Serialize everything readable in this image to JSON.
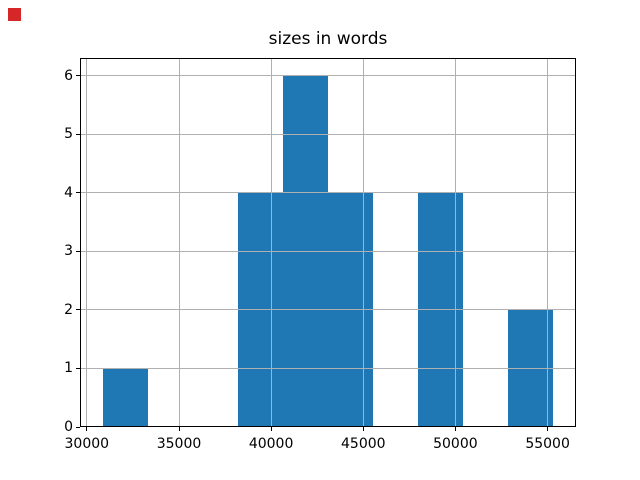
{
  "window": {
    "background_color": "#ffffff",
    "marker_color": "#d62728"
  },
  "chart_data": {
    "type": "bar",
    "subtype": "histogram",
    "title": "sizes in words",
    "xlabel": "",
    "ylabel": "",
    "bin_edges": [
      30850,
      33300,
      35750,
      38190,
      40640,
      43090,
      45530,
      47980,
      50430,
      52870,
      55320
    ],
    "counts": [
      1,
      0,
      0,
      4,
      6,
      4,
      0,
      4,
      0,
      2
    ],
    "x_ticks": [
      30000,
      35000,
      40000,
      45000,
      50000,
      55000
    ],
    "x_tick_labels": [
      "30000",
      "35000",
      "40000",
      "45000",
      "50000",
      "55000"
    ],
    "y_ticks": [
      0,
      1,
      2,
      3,
      4,
      5,
      6
    ],
    "y_tick_labels": [
      "0",
      "1",
      "2",
      "3",
      "4",
      "5",
      "6"
    ],
    "xlim": [
      29630,
      56543
    ],
    "ylim": [
      0,
      6.3
    ],
    "grid": true,
    "legend": false,
    "bar_color": "#1f77b4",
    "grid_color": "#b0b0b0",
    "axis_color": "#000000"
  }
}
